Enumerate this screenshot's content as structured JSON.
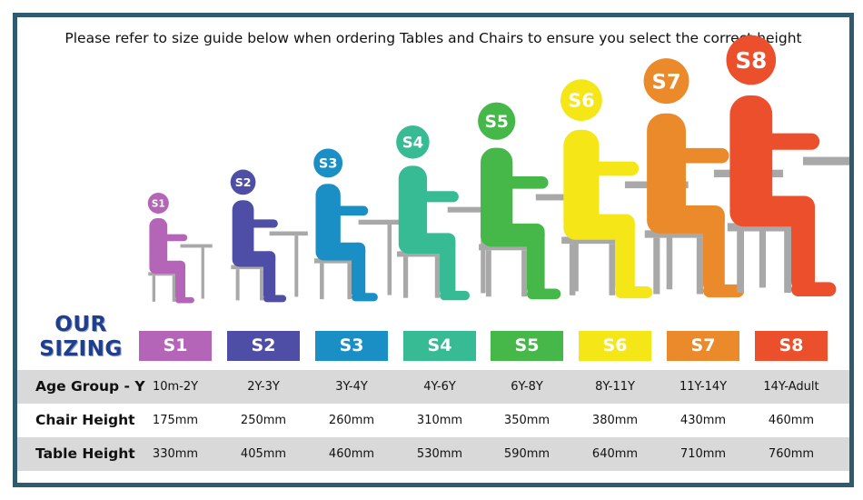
{
  "title": "Please refer to size guide below when ordering Tables and Chairs to ensure you select the correct height",
  "sizing_heading": {
    "line1": "OUR",
    "line2": "SIZING"
  },
  "sizes": [
    {
      "label": "S1",
      "color": "#b565b8",
      "age": "10m-2Y",
      "chair": "175mm",
      "table": "330mm"
    },
    {
      "label": "S2",
      "color": "#4f4ea6",
      "age": "2Y-3Y",
      "chair": "250mm",
      "table": "405mm"
    },
    {
      "label": "S3",
      "color": "#1a8fc6",
      "age": "3Y-4Y",
      "chair": "260mm",
      "table": "460mm"
    },
    {
      "label": "S4",
      "color": "#37bb95",
      "age": "4Y-6Y",
      "chair": "310mm",
      "table": "530mm"
    },
    {
      "label": "S5",
      "color": "#46b84a",
      "age": "6Y-8Y",
      "chair": "350mm",
      "table": "590mm"
    },
    {
      "label": "S6",
      "color": "#f5e618",
      "age": "8Y-11Y",
      "chair": "380mm",
      "table": "640mm"
    },
    {
      "label": "S7",
      "color": "#ea8a2a",
      "age": "11Y-14Y",
      "chair": "430mm",
      "table": "710mm"
    },
    {
      "label": "S8",
      "color": "#ec4f2b",
      "age": "14Y-Adult",
      "chair": "460mm",
      "table": "760mm"
    }
  ],
  "rows": {
    "age_header": "Age Group - Y",
    "chair_header": "Chair Height",
    "table_header": "Table Height"
  },
  "furniture_color": "#a8a8a8"
}
